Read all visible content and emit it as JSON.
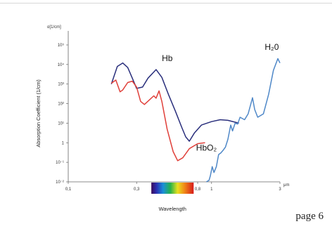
{
  "page": {
    "number_label": "page 6"
  },
  "chart_data": {
    "type": "line",
    "yunit_label": "α[1/cm]",
    "ylabel": "Absorption Coefficient (1/cm)",
    "xlabel": "Wavelength",
    "x_unit_label": "μm",
    "x_scale": "log",
    "y_scale": "log",
    "xlim": [
      0.1,
      3
    ],
    "ylim": [
      0.01,
      100000
    ],
    "yticks": [
      {
        "value": 0.01,
        "label": "10⁻²"
      },
      {
        "value": 0.1,
        "label": "10⁻¹"
      },
      {
        "value": 1,
        "label": "1"
      },
      {
        "value": 10,
        "label": "10¹"
      },
      {
        "value": 100,
        "label": "10²"
      },
      {
        "value": 1000,
        "label": "10³"
      },
      {
        "value": 10000,
        "label": "10⁴"
      },
      {
        "value": 100000,
        "label": "10⁵"
      }
    ],
    "xticks": [
      {
        "value": 0.1,
        "label": "0,1"
      },
      {
        "value": 0.3,
        "label": "0,3"
      },
      {
        "value": 0.8,
        "label": "0,8"
      },
      {
        "value": 1,
        "label": "1"
      },
      {
        "value": 3,
        "label": "3"
      }
    ],
    "spectrum_band": {
      "from": 0.38,
      "to": 0.75
    },
    "grid": false,
    "series": [
      {
        "name": "Hb",
        "color": "#2a2f7c",
        "points": [
          [
            0.2,
            1000
          ],
          [
            0.22,
            8000
          ],
          [
            0.24,
            12000
          ],
          [
            0.26,
            7000
          ],
          [
            0.28,
            2000
          ],
          [
            0.3,
            600
          ],
          [
            0.33,
            700
          ],
          [
            0.36,
            2000
          ],
          [
            0.41,
            5500
          ],
          [
            0.45,
            2200
          ],
          [
            0.5,
            300
          ],
          [
            0.56,
            40
          ],
          [
            0.62,
            6
          ],
          [
            0.66,
            2
          ],
          [
            0.7,
            1.2
          ],
          [
            0.76,
            3.2
          ],
          [
            0.85,
            8
          ],
          [
            1.0,
            12
          ],
          [
            1.15,
            15
          ],
          [
            1.3,
            14
          ],
          [
            1.55,
            10
          ]
        ]
      },
      {
        "name": "HbO₂",
        "color": "#e0403a",
        "points": [
          [
            0.2,
            1100
          ],
          [
            0.215,
            1600
          ],
          [
            0.23,
            400
          ],
          [
            0.24,
            500
          ],
          [
            0.26,
            1200
          ],
          [
            0.28,
            1400
          ],
          [
            0.3,
            700
          ],
          [
            0.32,
            130
          ],
          [
            0.34,
            90
          ],
          [
            0.37,
            160
          ],
          [
            0.395,
            250
          ],
          [
            0.41,
            190
          ],
          [
            0.43,
            450
          ],
          [
            0.45,
            130
          ],
          [
            0.49,
            5
          ],
          [
            0.54,
            0.35
          ],
          [
            0.58,
            0.12
          ],
          [
            0.63,
            0.17
          ],
          [
            0.7,
            0.5
          ],
          [
            0.8,
            0.9
          ],
          [
            0.9,
            1
          ]
        ]
      },
      {
        "name": "H₂0",
        "color": "#4f88c8",
        "points": [
          [
            0.92,
            0.01
          ],
          [
            0.96,
            0.012
          ],
          [
            0.98,
            0.02
          ],
          [
            1.01,
            0.06
          ],
          [
            1.04,
            0.03
          ],
          [
            1.08,
            0.06
          ],
          [
            1.12,
            0.25
          ],
          [
            1.16,
            0.3
          ],
          [
            1.2,
            0.4
          ],
          [
            1.25,
            0.6
          ],
          [
            1.3,
            1.5
          ],
          [
            1.36,
            8
          ],
          [
            1.4,
            4
          ],
          [
            1.46,
            10
          ],
          [
            1.52,
            9
          ],
          [
            1.58,
            20
          ],
          [
            1.7,
            15
          ],
          [
            1.8,
            30
          ],
          [
            1.93,
            200
          ],
          [
            2.0,
            50
          ],
          [
            2.1,
            20
          ],
          [
            2.3,
            30
          ],
          [
            2.5,
            300
          ],
          [
            2.7,
            5000
          ],
          [
            2.9,
            20000
          ],
          [
            3.0,
            12000
          ]
        ]
      }
    ],
    "labels": [
      {
        "text": "Hb",
        "x": 0.45,
        "y": 15000
      },
      {
        "text": "HbO₂",
        "x": 0.78,
        "y": 0.4
      },
      {
        "text": "H₂0",
        "x": 2.35,
        "y": 55000
      }
    ]
  }
}
